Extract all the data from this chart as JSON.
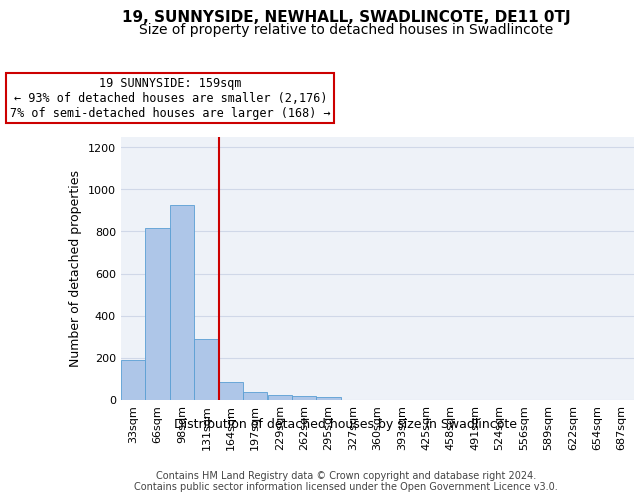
{
  "title": "19, SUNNYSIDE, NEWHALL, SWADLINCOTE, DE11 0TJ",
  "subtitle": "Size of property relative to detached houses in Swadlincote",
  "xlabel": "Distribution of detached houses by size in Swadlincote",
  "ylabel": "Number of detached properties",
  "bin_labels": [
    "33sqm",
    "66sqm",
    "98sqm",
    "131sqm",
    "164sqm",
    "197sqm",
    "229sqm",
    "262sqm",
    "295sqm",
    "327sqm",
    "360sqm",
    "393sqm",
    "425sqm",
    "458sqm",
    "491sqm",
    "524sqm",
    "556sqm",
    "589sqm",
    "622sqm",
    "654sqm",
    "687sqm"
  ],
  "bin_edges": [
    16.5,
    49.5,
    82.5,
    115.5,
    148.5,
    181.5,
    214.5,
    247.5,
    280.5,
    313.5,
    346.5,
    379.5,
    412.5,
    445.5,
    478.5,
    511.5,
    544.5,
    577.5,
    610.5,
    643.5,
    676.5,
    709.5
  ],
  "bar_values": [
    190,
    815,
    925,
    290,
    85,
    38,
    22,
    15,
    12,
    0,
    0,
    0,
    0,
    0,
    0,
    0,
    0,
    0,
    0,
    0,
    0
  ],
  "bar_color": "#aec6e8",
  "bar_edge_color": "#5a9fd4",
  "vline_color": "#cc0000",
  "annotation_line1": "19 SUNNYSIDE: 159sqm",
  "annotation_line2": "← 93% of detached houses are smaller (2,176)",
  "annotation_line3": "7% of semi-detached houses are larger (168) →",
  "annotation_box_color": "#ffffff",
  "annotation_box_edge_color": "#cc0000",
  "ylim": [
    0,
    1250
  ],
  "yticks": [
    0,
    200,
    400,
    600,
    800,
    1000,
    1200
  ],
  "grid_color": "#d0d8e8",
  "bg_color": "#eef2f8",
  "footer": "Contains HM Land Registry data © Crown copyright and database right 2024.\nContains public sector information licensed under the Open Government Licence v3.0.",
  "title_fontsize": 11,
  "subtitle_fontsize": 10,
  "xlabel_fontsize": 9,
  "ylabel_fontsize": 9,
  "tick_fontsize": 8,
  "annotation_fontsize": 8.5,
  "footer_fontsize": 7
}
